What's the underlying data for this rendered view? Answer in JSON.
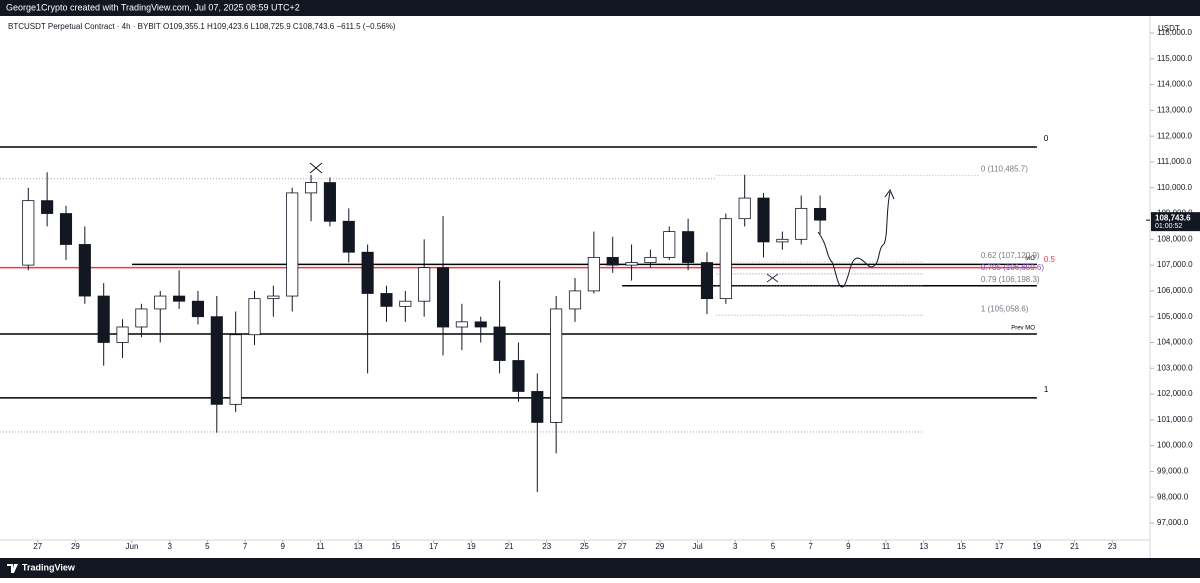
{
  "header": "George1Crypto created with TradingView.com, Jul 07, 2025 08:59 UTC+2",
  "footer": "TradingView",
  "chart_data": {
    "type": "candlestick",
    "title": "BTCUSDT Perpetual Contract · 4h · BYBIT",
    "subtitle": "O109,355.1  H109,423.6  L108,725.9  C108,743.6  −611.5 (−0.56%)",
    "y_axis_label": "USDT",
    "up_color": "#ffffff",
    "down_color": "#131722",
    "x": [
      "2025-05-26",
      "2025-05-27",
      "2025-05-28",
      "2025-05-29",
      "2025-05-30",
      "2025-05-31",
      "2025-06-01",
      "2025-06-02",
      "2025-06-03",
      "2025-06-04",
      "2025-06-05",
      "2025-06-06",
      "2025-06-07",
      "2025-06-08",
      "2025-06-09",
      "2025-06-10",
      "2025-06-11",
      "2025-06-12",
      "2025-06-13",
      "2025-06-14",
      "2025-06-15",
      "2025-06-16",
      "2025-06-17",
      "2025-06-18",
      "2025-06-19",
      "2025-06-20",
      "2025-06-21",
      "2025-06-22",
      "2025-06-23",
      "2025-06-24",
      "2025-06-25",
      "2025-06-26",
      "2025-06-27",
      "2025-06-28",
      "2025-06-29",
      "2025-06-30",
      "2025-07-01",
      "2025-07-02",
      "2025-07-03",
      "2025-07-04",
      "2025-07-05",
      "2025-07-06",
      "2025-07-07"
    ],
    "open": [
      107000,
      109500,
      109000,
      107800,
      105800,
      104000,
      104600,
      105300,
      105800,
      105600,
      105000,
      101600,
      104300,
      105700,
      105800,
      109800,
      110200,
      108700,
      107500,
      105900,
      105400,
      105600,
      106900,
      104600,
      104800,
      104600,
      103300,
      102100,
      100900,
      105300,
      106000,
      107300,
      107000,
      107100,
      107300,
      108300,
      107100,
      105700,
      108800,
      109600,
      107900,
      108000,
      109200
    ],
    "high": [
      110000,
      110600,
      109300,
      108500,
      106300,
      104900,
      105500,
      106000,
      106800,
      106000,
      105800,
      105200,
      106000,
      106200,
      110000,
      110500,
      110400,
      109200,
      107800,
      106200,
      106000,
      108000,
      108900,
      105500,
      105000,
      106400,
      104000,
      102800,
      105800,
      106500,
      108300,
      108100,
      107800,
      107600,
      108500,
      108800,
      107500,
      109000,
      110500,
      109800,
      108300,
      109700,
      109700
    ],
    "low": [
      106800,
      108500,
      107200,
      105500,
      103100,
      103400,
      104200,
      104000,
      105300,
      104700,
      100500,
      101300,
      103900,
      105000,
      105200,
      108700,
      108500,
      107100,
      102800,
      104800,
      104800,
      105000,
      103500,
      103700,
      104000,
      102800,
      101700,
      98200,
      99700,
      104800,
      105900,
      106700,
      106400,
      106900,
      107200,
      106800,
      105100,
      105500,
      108500,
      107300,
      107600,
      107800,
      108200
    ],
    "close": [
      109500,
      109000,
      107800,
      105800,
      104000,
      104600,
      105300,
      105800,
      105600,
      105000,
      101600,
      104300,
      105700,
      105800,
      109800,
      110200,
      108700,
      107500,
      105900,
      105400,
      105600,
      106900,
      104600,
      104800,
      104600,
      103300,
      102100,
      100900,
      105300,
      106000,
      107300,
      107000,
      107100,
      107300,
      108300,
      107100,
      105700,
      108800,
      109600,
      107900,
      108000,
      109200,
      108743.6
    ],
    "xlim": [
      "2025-05-25",
      "2025-07-25"
    ],
    "xticks": [
      {
        "value": "2025-05-27",
        "label": "27"
      },
      {
        "value": "2025-05-29",
        "label": "29"
      },
      {
        "value": "2025-06-01",
        "label": "Jun"
      },
      {
        "value": "2025-06-03",
        "label": "3"
      },
      {
        "value": "2025-06-05",
        "label": "5"
      },
      {
        "value": "2025-06-07",
        "label": "7"
      },
      {
        "value": "2025-06-09",
        "label": "9"
      },
      {
        "value": "2025-06-11",
        "label": "11"
      },
      {
        "value": "2025-06-13",
        "label": "13"
      },
      {
        "value": "2025-06-15",
        "label": "15"
      },
      {
        "value": "2025-06-17",
        "label": "17"
      },
      {
        "value": "2025-06-19",
        "label": "19"
      },
      {
        "value": "2025-06-21",
        "label": "21"
      },
      {
        "value": "2025-06-23",
        "label": "23"
      },
      {
        "value": "2025-06-25",
        "label": "25"
      },
      {
        "value": "2025-06-27",
        "label": "27"
      },
      {
        "value": "2025-06-29",
        "label": "29"
      },
      {
        "value": "2025-07-01",
        "label": "Jul"
      },
      {
        "value": "2025-07-03",
        "label": "3"
      },
      {
        "value": "2025-07-05",
        "label": "5"
      },
      {
        "value": "2025-07-07",
        "label": "7"
      },
      {
        "value": "2025-07-09",
        "label": "9"
      },
      {
        "value": "2025-07-11",
        "label": "11"
      },
      {
        "value": "2025-07-13",
        "label": "13"
      },
      {
        "value": "2025-07-15",
        "label": "15"
      },
      {
        "value": "2025-07-17",
        "label": "17"
      },
      {
        "value": "2025-07-19",
        "label": "19"
      },
      {
        "value": "2025-07-21",
        "label": "21"
      },
      {
        "value": "2025-07-23",
        "label": "23"
      }
    ],
    "ylim": [
      96340,
      116660
    ],
    "yticks": [
      {
        "value": 97000,
        "label": "97,000.0"
      },
      {
        "value": 98000,
        "label": "98,000.0"
      },
      {
        "value": 99000,
        "label": "99,000.0"
      },
      {
        "value": 100000,
        "label": "100,000.0"
      },
      {
        "value": 101000,
        "label": "101,000.0"
      },
      {
        "value": 102000,
        "label": "102,000.0"
      },
      {
        "value": 103000,
        "label": "103,000.0"
      },
      {
        "value": 104000,
        "label": "104,000.0"
      },
      {
        "value": 105000,
        "label": "105,000.0"
      },
      {
        "value": 106000,
        "label": "106,000.0"
      },
      {
        "value": 107000,
        "label": "107,000.0"
      },
      {
        "value": 108000,
        "label": "108,000.0"
      },
      {
        "value": 109000,
        "label": "109,000.0"
      },
      {
        "value": 110000,
        "label": "110,000.0"
      },
      {
        "value": 111000,
        "label": "111,000.0"
      },
      {
        "value": 112000,
        "label": "112,000.0"
      },
      {
        "value": 113000,
        "label": "113,000.0"
      },
      {
        "value": 114000,
        "label": "114,000.0"
      },
      {
        "value": 115000,
        "label": "115,000.0"
      },
      {
        "value": 116000,
        "label": "116,000.0"
      }
    ],
    "last_price": {
      "value": 108743.6,
      "label": "108,743.6"
    },
    "countdown": "01:00:52",
    "levels": [
      {
        "price": 111580,
        "color": "#000000",
        "style": "solid",
        "start": "2025-05-25",
        "end": "2025-07-19",
        "label": "0",
        "label_color": "#000000",
        "label_at": "end"
      },
      {
        "price": 110350,
        "color": "#9598a1",
        "style": "dotted",
        "start": "2025-05-25",
        "end": "2025-07-02"
      },
      {
        "price": 107030,
        "color": "#000000",
        "style": "solid",
        "start": "2025-06-01",
        "end": "2025-07-19",
        "label": "MO",
        "label_color": "#000000",
        "label_at": "inside"
      },
      {
        "price": 106900,
        "color": "#f23645",
        "style": "solid",
        "start": "2025-05-25",
        "end": "2025-07-19",
        "label": "0.5",
        "label_color": "#f23645",
        "label_at": "end"
      },
      {
        "price": 106200,
        "color": "#000000",
        "style": "solid",
        "start": "2025-06-27",
        "end": "2025-07-19"
      },
      {
        "price": 104330,
        "color": "#000000",
        "style": "solid",
        "start": "2025-05-25",
        "end": "2025-07-19",
        "label": "Prev MO",
        "label_color": "#000000",
        "label_at": "inside"
      },
      {
        "price": 101850,
        "color": "#000000",
        "style": "solid",
        "start": "2025-05-25",
        "end": "2025-07-19",
        "label": "1",
        "label_color": "#000000",
        "label_at": "end"
      },
      {
        "price": 100530,
        "color": "#9598a1",
        "style": "dotted",
        "start": "2025-05-25",
        "end": "2025-07-13"
      },
      {
        "price": 110485.7,
        "color": "#9598a1",
        "style": "dotted",
        "start": "2025-07-02",
        "end": "2025-07-16",
        "label": "0 (110,485.7)",
        "label_color": "#787b86",
        "label_at": "fib"
      },
      {
        "price": 107120.9,
        "color": "#9598a1",
        "style": "dotted",
        "start": "2025-07-02",
        "end": "2025-07-13",
        "label": "0.62 (107,120.9)",
        "label_color": "#787b86",
        "label_at": "fib"
      },
      {
        "price": 106659.6,
        "color": "#7e57c2",
        "style": "dotted",
        "start": "2025-07-02",
        "end": "2025-07-13",
        "label": "0.705 (106,659.6)",
        "label_color": "#7e57c2",
        "label_at": "fib"
      },
      {
        "price": 106198.3,
        "color": "#9598a1",
        "style": "dotted",
        "start": "2025-07-02",
        "end": "2025-07-13",
        "label": "0.79 (106,198.3)",
        "label_color": "#787b86",
        "label_at": "fib"
      },
      {
        "price": 105058.6,
        "color": "#9598a1",
        "style": "dotted",
        "start": "2025-07-02",
        "end": "2025-07-13",
        "label": "1 (105,058.6)",
        "label_color": "#787b86",
        "label_at": "fib"
      }
    ]
  }
}
